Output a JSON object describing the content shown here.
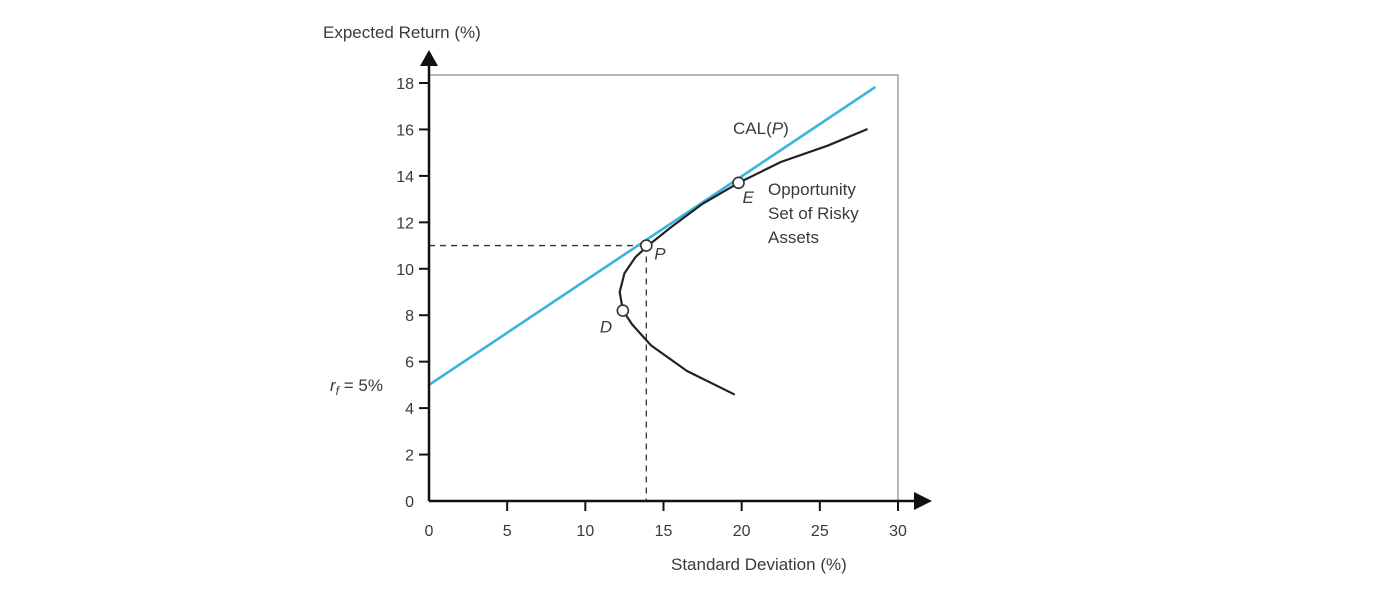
{
  "chart_data": {
    "type": "line",
    "title": "",
    "xlabel": "Standard Deviation (%)",
    "ylabel": "Expected Return (%)",
    "xlim": [
      0,
      30
    ],
    "ylim": [
      0,
      18
    ],
    "xticks": [
      0,
      5,
      10,
      15,
      20,
      25,
      30
    ],
    "yticks": [
      0,
      2,
      4,
      6,
      8,
      10,
      12,
      14,
      16,
      18
    ],
    "grid": false,
    "legend": "none",
    "series": [
      {
        "name": "CAL(P)",
        "color": "#3bb3e0",
        "points": [
          [
            0,
            5.0
          ],
          [
            28.5,
            17.8
          ]
        ]
      },
      {
        "name": "Opportunity Set of Risky Assets",
        "color": "#222222",
        "points": [
          [
            19.5,
            4.6
          ],
          [
            16.5,
            5.6
          ],
          [
            14.2,
            6.7
          ],
          [
            13.0,
            7.6
          ],
          [
            12.4,
            8.2
          ],
          [
            12.2,
            9.0
          ],
          [
            12.5,
            9.8
          ],
          [
            13.2,
            10.5
          ],
          [
            14.0,
            11.0
          ],
          [
            15.5,
            11.8
          ],
          [
            17.5,
            12.8
          ],
          [
            19.8,
            13.7
          ],
          [
            22.5,
            14.6
          ],
          [
            25.5,
            15.3
          ],
          [
            28.0,
            16.0
          ]
        ]
      }
    ],
    "points": [
      {
        "label": "P",
        "x": 13.9,
        "y": 11.0
      },
      {
        "label": "E",
        "x": 19.8,
        "y": 13.7
      },
      {
        "label": "D",
        "x": 12.4,
        "y": 8.2
      }
    ],
    "annotations": {
      "cal_label": "CAL(P)",
      "opportunity_set_lines": [
        "Opportunity",
        "Set of Risky",
        "Assets"
      ],
      "rf_label": "r",
      "rf_subscript": "f",
      "rf_value": " = 5%"
    },
    "guides": {
      "x": 13.9,
      "y": 11.0
    }
  }
}
